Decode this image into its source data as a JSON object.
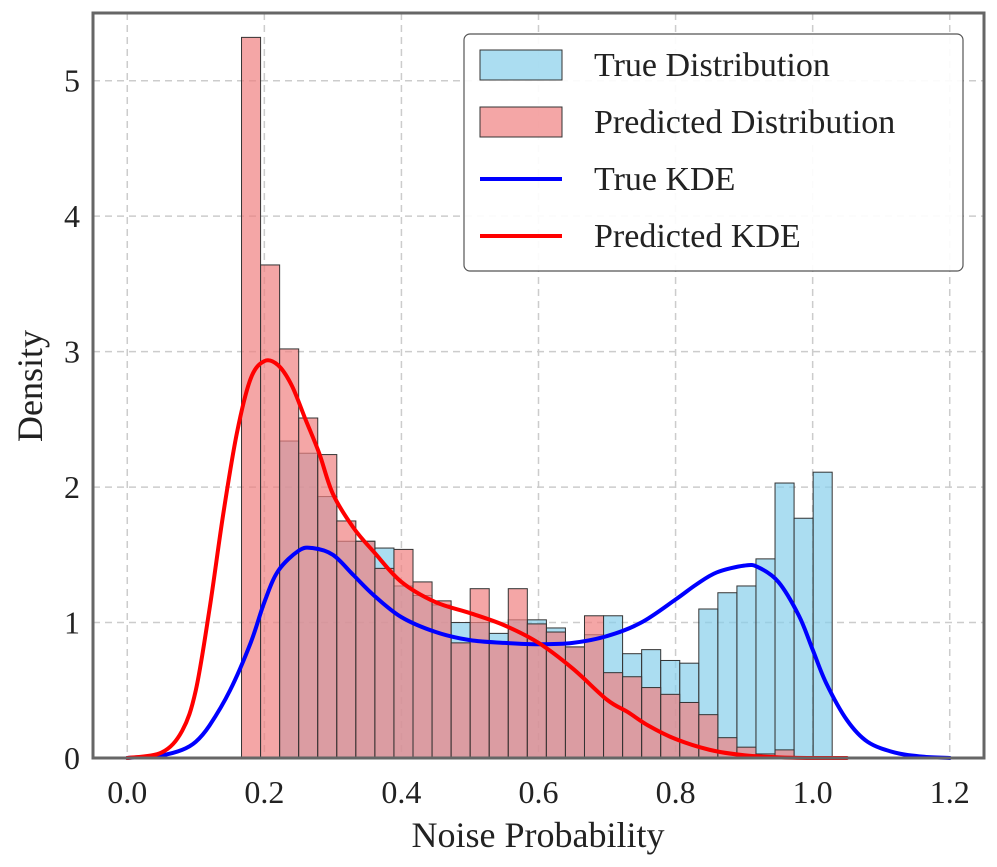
{
  "chart_data": {
    "type": "bar",
    "xlabel": "Noise Probability",
    "ylabel": "Density",
    "xlim": [
      -0.05,
      1.25
    ],
    "ylim": [
      0,
      5.5
    ],
    "grid": true,
    "legend_position": "top-right",
    "x_ticks": [
      "0.0",
      "0.2",
      "0.4",
      "0.6",
      "0.8",
      "1.0",
      "1.2"
    ],
    "y_ticks": [
      "0",
      "1",
      "2",
      "3",
      "4",
      "5"
    ],
    "bin_start": 0.1667,
    "bin_width": 0.0278,
    "series": [
      {
        "name": "True Distribution",
        "kind": "histogram",
        "color": "#87ceeb",
        "values": [
          0,
          0,
          2.34,
          2.25,
          1.93,
          1.6,
          1.6,
          1.55,
          1.27,
          1.2,
          1.13,
          1.0,
          1.0,
          0.92,
          1.02,
          1.02,
          0.96,
          0.82,
          0.91,
          1.05,
          0.77,
          0.8,
          0.72,
          0.7,
          1.1,
          1.22,
          1.27,
          1.47,
          2.03,
          1.77,
          2.11
        ]
      },
      {
        "name": "Predicted Distribution",
        "kind": "histogram",
        "color": "#f08080",
        "values": [
          5.32,
          3.64,
          3.02,
          2.51,
          2.24,
          1.75,
          1.6,
          1.4,
          1.54,
          1.3,
          1.16,
          0.85,
          1.25,
          0.86,
          1.25,
          0.99,
          0.93,
          0.82,
          1.05,
          0.63,
          0.6,
          0.52,
          0.47,
          0.41,
          0.32,
          0.15,
          0.08,
          0.03,
          0.06,
          0,
          0
        ]
      },
      {
        "name": "True KDE",
        "kind": "line",
        "color": "#0000ff",
        "x": [
          0.0,
          0.05,
          0.08,
          0.1,
          0.12,
          0.15,
          0.18,
          0.2,
          0.22,
          0.25,
          0.27,
          0.3,
          0.33,
          0.36,
          0.4,
          0.45,
          0.5,
          0.55,
          0.6,
          0.65,
          0.7,
          0.75,
          0.8,
          0.83,
          0.86,
          0.9,
          0.92,
          0.95,
          0.98,
          1.0,
          1.02,
          1.05,
          1.08,
          1.12,
          1.16,
          1.2
        ],
        "values": [
          0.0,
          0.02,
          0.06,
          0.12,
          0.24,
          0.5,
          0.85,
          1.15,
          1.38,
          1.53,
          1.55,
          1.5,
          1.35,
          1.2,
          1.04,
          0.93,
          0.87,
          0.85,
          0.84,
          0.85,
          0.9,
          1.0,
          1.17,
          1.28,
          1.37,
          1.42,
          1.41,
          1.3,
          1.05,
          0.8,
          0.55,
          0.28,
          0.12,
          0.04,
          0.01,
          0.0
        ]
      },
      {
        "name": "Predicted KDE",
        "kind": "line",
        "color": "#ff0000",
        "x": [
          0.0,
          0.05,
          0.08,
          0.1,
          0.12,
          0.14,
          0.16,
          0.18,
          0.2,
          0.22,
          0.24,
          0.26,
          0.28,
          0.3,
          0.33,
          0.36,
          0.4,
          0.45,
          0.5,
          0.55,
          0.6,
          0.65,
          0.7,
          0.73,
          0.76,
          0.8,
          0.85,
          0.9,
          0.95,
          1.0,
          1.05
        ],
        "values": [
          0.0,
          0.04,
          0.2,
          0.5,
          1.1,
          1.8,
          2.4,
          2.8,
          2.93,
          2.9,
          2.75,
          2.5,
          2.25,
          1.95,
          1.7,
          1.52,
          1.3,
          1.15,
          1.07,
          0.98,
          0.85,
          0.66,
          0.43,
          0.34,
          0.24,
          0.14,
          0.06,
          0.02,
          0.005,
          0.0,
          0.0
        ]
      }
    ]
  }
}
